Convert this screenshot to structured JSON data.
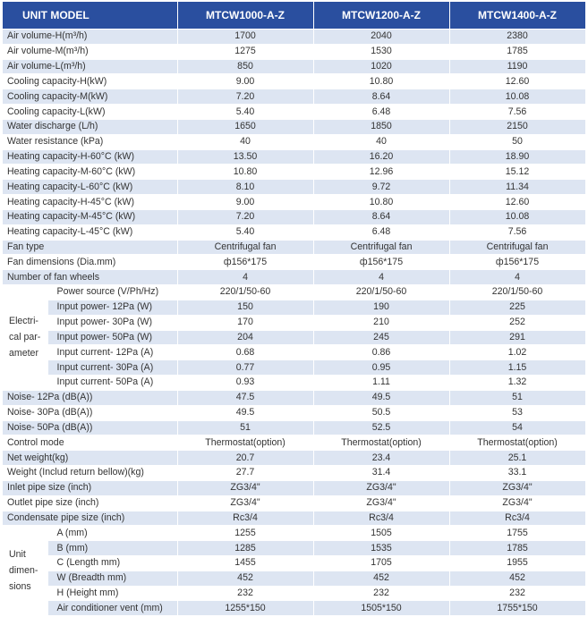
{
  "header": {
    "label": "UNIT MODEL",
    "models": [
      "MTCW1000-A-Z",
      "MTCW1200-A-Z",
      "MTCW1400-A-Z"
    ]
  },
  "rows": [
    {
      "label": "Air volume-H(m³/h)",
      "values": [
        "1700",
        "2040",
        "2380"
      ]
    },
    {
      "label": "Air volume-M(m³/h)",
      "values": [
        "1275",
        "1530",
        "1785"
      ]
    },
    {
      "label": "Air volume-L(m³/h)",
      "values": [
        "850",
        "1020",
        "1190"
      ]
    },
    {
      "label": "Cooling capacity-H(kW)",
      "values": [
        "9.00",
        "10.80",
        "12.60"
      ]
    },
    {
      "label": "Cooling capacity-M(kW)",
      "values": [
        "7.20",
        "8.64",
        "10.08"
      ]
    },
    {
      "label": "Cooling capacity-L(kW)",
      "values": [
        "5.40",
        "6.48",
        "7.56"
      ]
    },
    {
      "label": "Water discharge (L/h)",
      "values": [
        "1650",
        "1850",
        "2150"
      ]
    },
    {
      "label": "Water resistance (kPa)",
      "values": [
        "40",
        "40",
        "50"
      ]
    },
    {
      "label": "Heating capacity-H-60°C (kW)",
      "values": [
        "13.50",
        "16.20",
        "18.90"
      ]
    },
    {
      "label": "Heating capacity-M-60°C (kW)",
      "values": [
        "10.80",
        "12.96",
        "15.12"
      ]
    },
    {
      "label": "Heating capacity-L-60°C (kW)",
      "values": [
        "8.10",
        "9.72",
        "11.34"
      ]
    },
    {
      "label": "Heating capacity-H-45°C (kW)",
      "values": [
        "9.00",
        "10.80",
        "12.60"
      ]
    },
    {
      "label": "Heating capacity-M-45°C (kW)",
      "values": [
        "7.20",
        "8.64",
        "10.08"
      ]
    },
    {
      "label": "Heating capacity-L-45°C (kW)",
      "values": [
        "5.40",
        "6.48",
        "7.56"
      ]
    },
    {
      "label": "Fan type",
      "values": [
        "Centrifugal fan",
        "Centrifugal fan",
        "Centrifugal fan"
      ]
    },
    {
      "label": "Fan dimensions (Dia.mm)",
      "values": [
        "ф156*175",
        "ф156*175",
        "ф156*175"
      ]
    },
    {
      "label": "Number of fan wheels",
      "values": [
        "4",
        "4",
        "4"
      ]
    }
  ],
  "electrical": {
    "group_label": "Electri- cal par- ameter",
    "rows": [
      {
        "label": "Power source (V/Ph/Hz)",
        "values": [
          "220/1/50-60",
          "220/1/50-60",
          "220/1/50-60"
        ]
      },
      {
        "label": "Input power- 12Pa (W)",
        "values": [
          "150",
          "190",
          "225"
        ]
      },
      {
        "label": "Input power- 30Pa (W)",
        "values": [
          "170",
          "210",
          "252"
        ]
      },
      {
        "label": "Input power- 50Pa (W)",
        "values": [
          "204",
          "245",
          "291"
        ]
      },
      {
        "label": "Input current- 12Pa (A)",
        "values": [
          "0.68",
          "0.86",
          "1.02"
        ]
      },
      {
        "label": "Input current- 30Pa (A)",
        "values": [
          "0.77",
          "0.95",
          "1.15"
        ]
      },
      {
        "label": "Input current- 50Pa (A)",
        "values": [
          "0.93",
          "1.11",
          "1.32"
        ]
      }
    ]
  },
  "rows2": [
    {
      "label": "Noise- 12Pa (dB(A))",
      "values": [
        "47.5",
        "49.5",
        "51"
      ]
    },
    {
      "label": "Noise- 30Pa (dB(A))",
      "values": [
        "49.5",
        "50.5",
        "53"
      ]
    },
    {
      "label": "Noise- 50Pa (dB(A))",
      "values": [
        "51",
        "52.5",
        "54"
      ]
    },
    {
      "label": "Control mode",
      "values": [
        "Thermostat(option)",
        "Thermostat(option)",
        "Thermostat(option)"
      ]
    },
    {
      "label": "Net weight(kg)",
      "values": [
        "20.7",
        "23.4",
        "25.1"
      ]
    },
    {
      "label": "Weight (Includ return bellow)(kg)",
      "values": [
        "27.7",
        "31.4",
        "33.1"
      ]
    },
    {
      "label": "Inlet pipe size (inch)",
      "values": [
        "ZG3/4\"",
        "ZG3/4\"",
        "ZG3/4\""
      ]
    },
    {
      "label": "Outlet pipe size (inch)",
      "values": [
        "ZG3/4\"",
        "ZG3/4\"",
        "ZG3/4\""
      ]
    },
    {
      "label": "Condensate pipe size (inch)",
      "values": [
        "Rc3/4",
        "Rc3/4",
        "Rc3/4"
      ]
    }
  ],
  "dimensions": {
    "group_label": "Unit dimen- sions",
    "rows": [
      {
        "label": "A (mm)",
        "values": [
          "1255",
          "1505",
          "1755"
        ]
      },
      {
        "label": "B (mm)",
        "values": [
          "1285",
          "1535",
          "1785"
        ]
      },
      {
        "label": "C (Length mm)",
        "values": [
          "1455",
          "1705",
          "1955"
        ]
      },
      {
        "label": "W (Breadth mm)",
        "values": [
          "452",
          "452",
          "452"
        ]
      },
      {
        "label": "H (Height mm)",
        "values": [
          "232",
          "232",
          "232"
        ]
      },
      {
        "label": "Air conditioner vent (mm)",
        "values": [
          "1255*150",
          "1505*150",
          "1755*150"
        ]
      }
    ]
  }
}
